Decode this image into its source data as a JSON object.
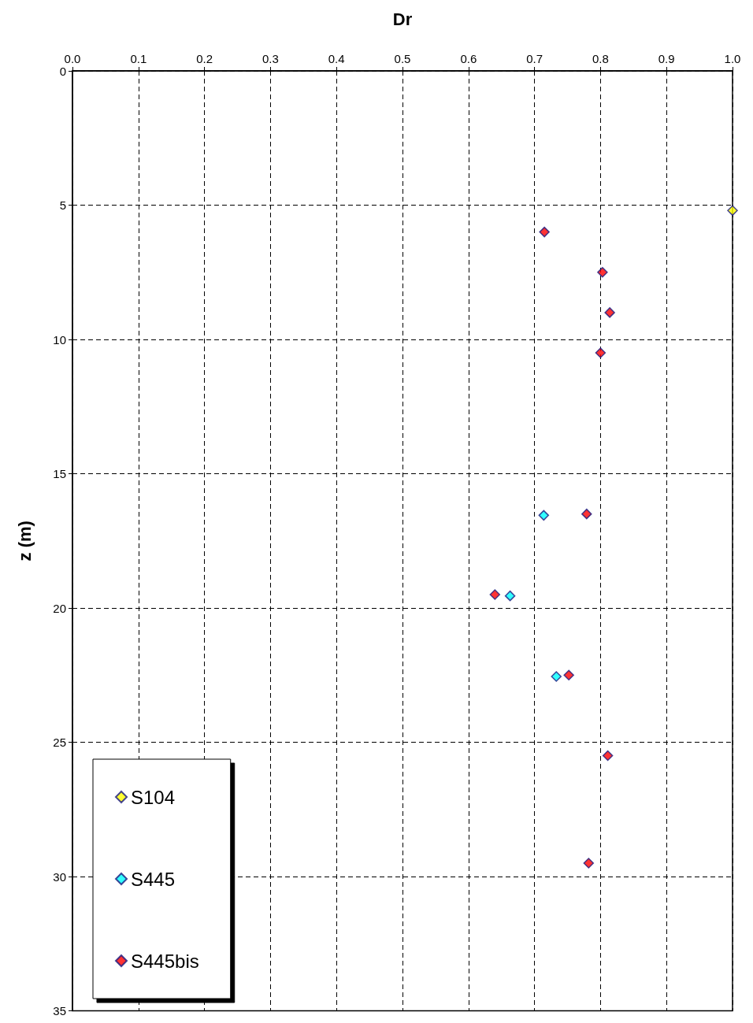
{
  "chart_data": {
    "type": "scatter",
    "xlabel": "Dr",
    "ylabel": "z (m)",
    "xlim": [
      0,
      1
    ],
    "xticks": [
      {
        "value": 0,
        "label": "0.0"
      },
      0.1,
      0.2,
      0.3,
      0.4,
      0.5,
      0.6,
      0.7,
      0.8,
      0.9,
      {
        "value": 1,
        "label": "1.0"
      }
    ],
    "ylim": [
      35,
      0
    ],
    "yticks": [
      0,
      5,
      10,
      15,
      20,
      25,
      30,
      35
    ],
    "grid": true,
    "legend": "bottom left",
    "marker": "diamond",
    "series": [
      {
        "name": "S104",
        "color": "#ffff00",
        "x": [
          1.0
        ],
        "values": [
          5.2
        ]
      },
      {
        "name": "S445",
        "color": "#00ffff",
        "x": [
          0.714,
          0.663,
          0.733
        ],
        "values": [
          16.55,
          19.55,
          22.55
        ]
      },
      {
        "name": "S445bis",
        "color": "#ff0000",
        "x": [
          0.715,
          0.803,
          0.814,
          0.8,
          0.779,
          0.64,
          0.752,
          0.811,
          0.782
        ],
        "values": [
          6.0,
          7.5,
          9.0,
          10.5,
          16.5,
          19.5,
          22.5,
          25.5,
          29.5
        ]
      }
    ]
  }
}
